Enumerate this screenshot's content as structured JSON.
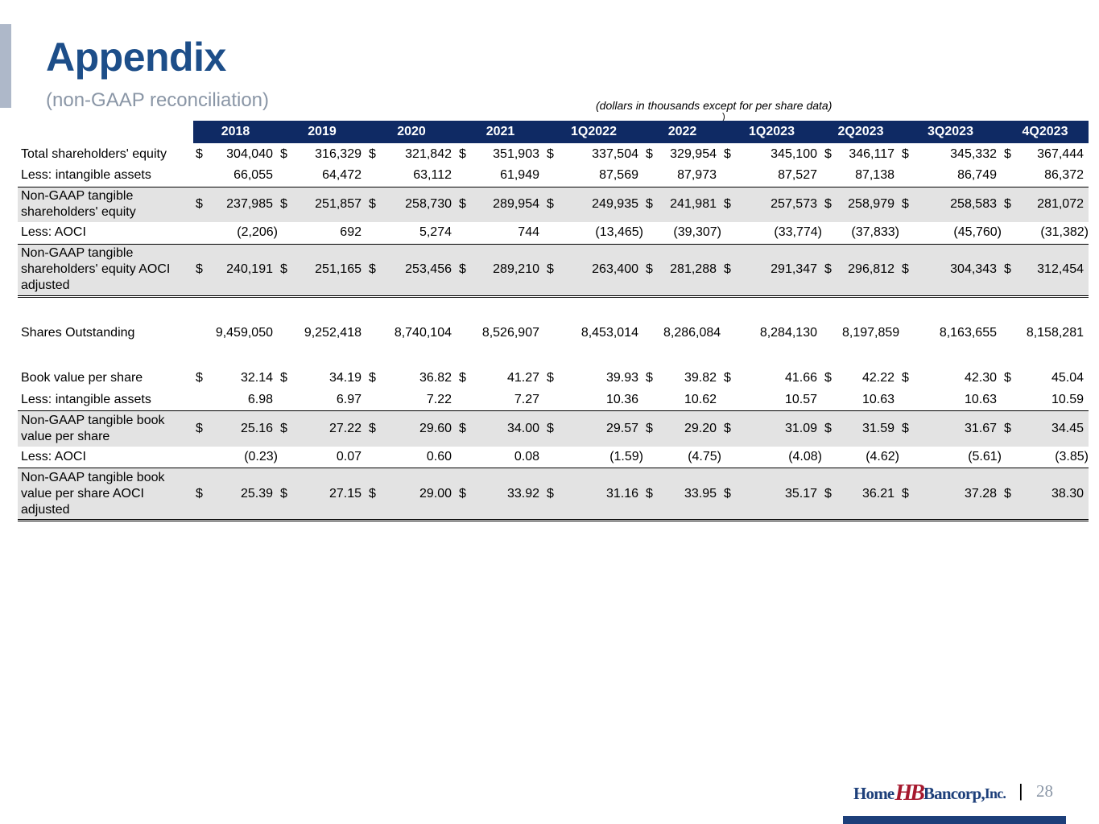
{
  "header": {
    "title": "Appendix",
    "subtitle": "(non-GAAP reconciliation)",
    "note": "(dollars in thousands except for per share data)",
    "note_tail": ")"
  },
  "columns": [
    "2018",
    "2019",
    "2020",
    "2021",
    "1Q2022",
    "2022",
    "1Q2023",
    "2Q2023",
    "3Q2023",
    "4Q2023"
  ],
  "rows": {
    "total_equity": {
      "label": "Total shareholders' equity",
      "currency": "$",
      "values": [
        "304,040",
        "316,329",
        "321,842",
        "351,903",
        "337,504",
        "329,954",
        "345,100",
        "346,117",
        "345,332",
        "367,444"
      ]
    },
    "intangibles": {
      "label": "Less: intangible assets",
      "values": [
        "66,055",
        "64,472",
        "63,112",
        "61,949",
        "87,569",
        "87,973",
        "87,527",
        "87,138",
        "86,749",
        "86,372"
      ]
    },
    "tangible_equity": {
      "label": "Non-GAAP tangible shareholders' equity",
      "currency": "$",
      "values": [
        "237,985",
        "251,857",
        "258,730",
        "289,954",
        "249,935",
        "241,981",
        "257,573",
        "258,979",
        "258,583",
        "281,072"
      ]
    },
    "aoci": {
      "label": "Less: AOCI",
      "values": [
        "(2,206)",
        "692",
        "5,274",
        "744",
        "(13,465)",
        "(39,307)",
        "(33,774)",
        "(37,833)",
        "(45,760)",
        "(31,382)"
      ]
    },
    "tangible_equity_aoci": {
      "label": "Non-GAAP tangible shareholders' equity AOCI adjusted",
      "currency": "$",
      "values": [
        "240,191",
        "251,165",
        "253,456",
        "289,210",
        "263,400",
        "281,288",
        "291,347",
        "296,812",
        "304,343",
        "312,454"
      ]
    },
    "shares": {
      "label": "Shares Outstanding",
      "values": [
        "9,459,050",
        "9,252,418",
        "8,740,104",
        "8,526,907",
        "8,453,014",
        "8,286,084",
        "8,284,130",
        "8,197,859",
        "8,163,655",
        "8,158,281"
      ]
    },
    "bvps": {
      "label": "Book value per share",
      "currency": "$",
      "values": [
        "32.14",
        "34.19",
        "36.82",
        "41.27",
        "39.93",
        "39.82",
        "41.66",
        "42.22",
        "42.30",
        "45.04"
      ]
    },
    "intangibles_ps": {
      "label": "Less: intangible assets",
      "values": [
        "6.98",
        "6.97",
        "7.22",
        "7.27",
        "10.36",
        "10.62",
        "10.57",
        "10.63",
        "10.63",
        "10.59"
      ]
    },
    "tbvps": {
      "label": "Non-GAAP tangible book value per share",
      "currency": "$",
      "values": [
        "25.16",
        "27.22",
        "29.60",
        "34.00",
        "29.57",
        "29.20",
        "31.09",
        "31.59",
        "31.67",
        "34.45"
      ]
    },
    "aoci_ps": {
      "label": "Less: AOCI",
      "values": [
        "(0.23)",
        "0.07",
        "0.60",
        "0.08",
        "(1.59)",
        "(4.75)",
        "(4.08)",
        "(4.62)",
        "(5.61)",
        "(3.85)"
      ]
    },
    "tbvps_aoci": {
      "label": "Non-GAAP tangible book value per share AOCI adjusted",
      "currency": "$",
      "values": [
        "25.39",
        "27.15",
        "29.00",
        "33.92",
        "31.16",
        "33.95",
        "35.17",
        "36.21",
        "37.28",
        "38.30"
      ]
    }
  },
  "footer": {
    "logo_home": "Home",
    "logo_mark": "HB",
    "logo_bancorp": "Bancorp,",
    "logo_inc": "Inc.",
    "separator": "|",
    "page_number": "28"
  },
  "colors": {
    "title": "#1d4e89",
    "header_fill": "#0f2a64",
    "shade": "#e3e3e3",
    "logo_red": "#a6192e"
  }
}
